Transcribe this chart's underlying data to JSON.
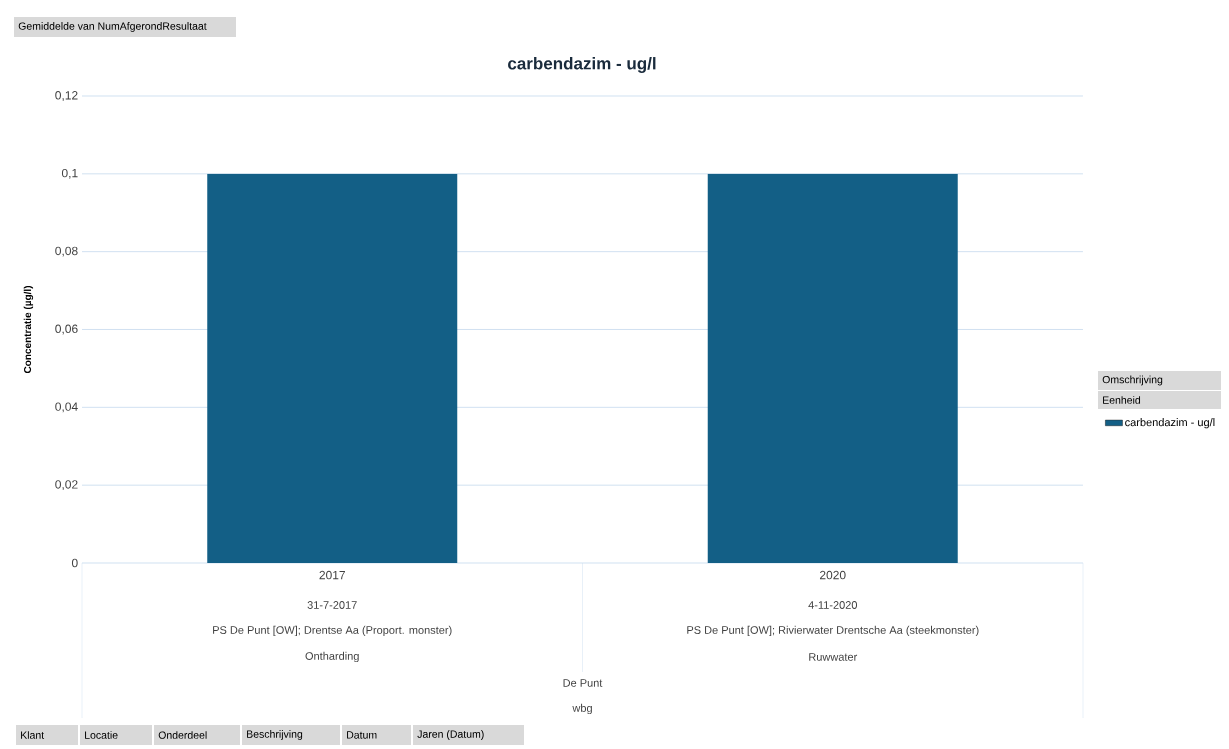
{
  "chart_data": {
    "type": "bar",
    "title": "carbendazim - ug/l",
    "ylabel": "Concentratie (µg/l)",
    "categories": [
      "2017",
      "2020"
    ],
    "series": [
      {
        "name": "carbendazim - ug/l",
        "color": "#135f86",
        "values": [
          0.1,
          0.1
        ]
      }
    ],
    "ylim": [
      0,
      0.12
    ],
    "yticks": [
      0,
      {
        "value": 0.02,
        "label": "0,02"
      },
      {
        "value": 0.04,
        "label": "0,04"
      },
      {
        "value": 0.06,
        "label": "0,06"
      },
      {
        "value": 0.08,
        "label": "0,08"
      },
      {
        "value": 0.1,
        "label": "0,1"
      },
      {
        "value": 0.12,
        "label": "0,12"
      }
    ],
    "grid": "y",
    "legend": "right",
    "annotations": [
      "Gemiddelde van NumAfgerondResultaat",
      "31-7-2017",
      "4-11-2020",
      "PS De Punt [OW]; Drentse Aa (Proport. monster)",
      "PS De Punt [OW]; Rivierwater Drentsche Aa (steekmonster)",
      "Ontharding",
      "Ruwwater",
      "De Punt",
      "wbg",
      "Omschrijving",
      "Eenheid",
      "Klant",
      "Locatie",
      "Onderdeel",
      "Beschrijving",
      "Datum",
      "Jaren (Datum)"
    ]
  }
}
